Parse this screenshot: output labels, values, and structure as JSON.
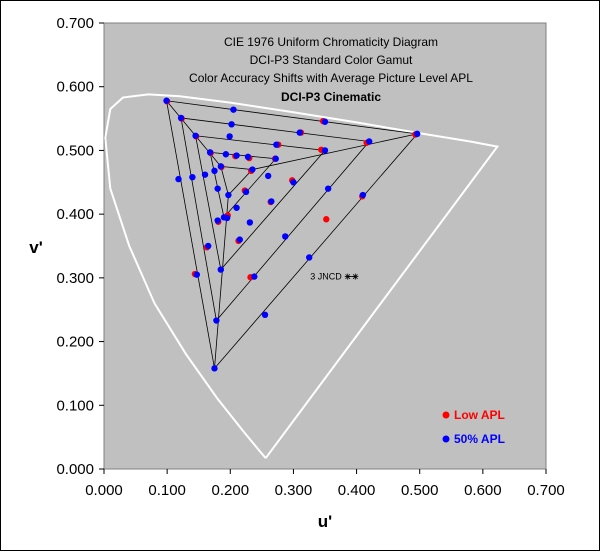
{
  "chart_data": {
    "type": "scatter",
    "title_lines": [
      "CIE 1976 Uniform Chromaticity Diagram",
      "DCI-P3 Standard Color Gamut",
      "Color Accuracy Shifts with Average Picture Level APL"
    ],
    "subtitle": "DCI-P3 Cinematic",
    "xlabel": "u'",
    "ylabel": "v'",
    "xlim": [
      0,
      0.7
    ],
    "ylim": [
      0,
      0.7
    ],
    "x_ticks": [
      "0.000",
      "0.100",
      "0.200",
      "0.300",
      "0.400",
      "0.500",
      "0.600",
      "0.700"
    ],
    "y_ticks": [
      "0.000",
      "0.100",
      "0.200",
      "0.300",
      "0.400",
      "0.500",
      "0.600",
      "0.700"
    ],
    "x_tick_values": [
      0,
      0.1,
      0.2,
      0.3,
      0.4,
      0.5,
      0.6,
      0.7
    ],
    "y_tick_values": [
      0,
      0.1,
      0.2,
      0.3,
      0.4,
      0.5,
      0.6,
      0.7
    ],
    "grid": false,
    "plot_background": "#c0c0c0",
    "spectral_locus_color": "#ffffff",
    "grid_line_color": "#000000",
    "locus": [
      [
        0.256,
        0.017
      ],
      [
        0.245,
        0.03
      ],
      [
        0.22,
        0.06
      ],
      [
        0.18,
        0.11
      ],
      [
        0.13,
        0.18
      ],
      [
        0.08,
        0.26
      ],
      [
        0.04,
        0.35
      ],
      [
        0.01,
        0.44
      ],
      [
        0.002,
        0.52
      ],
      [
        0.01,
        0.565
      ],
      [
        0.03,
        0.583
      ],
      [
        0.07,
        0.588
      ],
      [
        0.12,
        0.585
      ],
      [
        0.2,
        0.575
      ],
      [
        0.3,
        0.56
      ],
      [
        0.4,
        0.544
      ],
      [
        0.5,
        0.527
      ],
      [
        0.58,
        0.514
      ],
      [
        0.623,
        0.506
      ],
      [
        0.256,
        0.017
      ]
    ],
    "gamut_triangles": [
      [
        [
          0.099,
          0.578
        ],
        [
          0.496,
          0.526
        ],
        [
          0.175,
          0.158
        ]
      ],
      [
        [
          0.122,
          0.551
        ],
        [
          0.42,
          0.514
        ],
        [
          0.178,
          0.233
        ]
      ],
      [
        [
          0.145,
          0.523
        ],
        [
          0.35,
          0.5
        ],
        [
          0.185,
          0.313
        ]
      ],
      [
        [
          0.168,
          0.497
        ],
        [
          0.272,
          0.487
        ],
        [
          0.19,
          0.395
        ]
      ],
      [
        [
          0.185,
          0.475
        ],
        [
          0.235,
          0.47
        ],
        [
          0.197,
          0.43
        ]
      ]
    ],
    "spokes": [
      [
        [
          0.099,
          0.578
        ],
        [
          0.185,
          0.475
        ]
      ],
      [
        [
          0.496,
          0.526
        ],
        [
          0.235,
          0.47
        ]
      ],
      [
        [
          0.175,
          0.158
        ],
        [
          0.197,
          0.43
        ]
      ]
    ],
    "series": [
      {
        "name": "Low APL",
        "color": "#ff0000",
        "points": [
          [
            0.1,
            0.577
          ],
          [
            0.123,
            0.55
          ],
          [
            0.146,
            0.522
          ],
          [
            0.169,
            0.496
          ],
          [
            0.186,
            0.474
          ],
          [
            0.347,
            0.546
          ],
          [
            0.312,
            0.528
          ],
          [
            0.276,
            0.509
          ],
          [
            0.23,
            0.488
          ],
          [
            0.208,
            0.491
          ],
          [
            0.493,
            0.525
          ],
          [
            0.416,
            0.512
          ],
          [
            0.344,
            0.501
          ],
          [
            0.271,
            0.487
          ],
          [
            0.233,
            0.468
          ],
          [
            0.163,
            0.348
          ],
          [
            0.144,
            0.306
          ],
          [
            0.232,
            0.301
          ],
          [
            0.213,
            0.358
          ],
          [
            0.196,
            0.398
          ],
          [
            0.181,
            0.388
          ],
          [
            0.298,
            0.453
          ],
          [
            0.264,
            0.419
          ],
          [
            0.223,
            0.437
          ],
          [
            0.409,
            0.428
          ],
          [
            0.352,
            0.392
          ]
        ]
      },
      {
        "name": "50% APL",
        "color": "#0000ff",
        "points": [
          [
            0.099,
            0.578
          ],
          [
            0.122,
            0.551
          ],
          [
            0.145,
            0.523
          ],
          [
            0.168,
            0.497
          ],
          [
            0.185,
            0.475
          ],
          [
            0.205,
            0.564
          ],
          [
            0.202,
            0.541
          ],
          [
            0.199,
            0.522
          ],
          [
            0.193,
            0.494
          ],
          [
            0.21,
            0.492
          ],
          [
            0.496,
            0.526
          ],
          [
            0.42,
            0.514
          ],
          [
            0.35,
            0.5
          ],
          [
            0.272,
            0.487
          ],
          [
            0.235,
            0.47
          ],
          [
            0.175,
            0.158
          ],
          [
            0.178,
            0.233
          ],
          [
            0.185,
            0.313
          ],
          [
            0.19,
            0.395
          ],
          [
            0.197,
            0.43
          ],
          [
            0.35,
            0.545
          ],
          [
            0.31,
            0.528
          ],
          [
            0.273,
            0.509
          ],
          [
            0.228,
            0.49
          ],
          [
            0.41,
            0.43
          ],
          [
            0.355,
            0.44
          ],
          [
            0.3,
            0.45
          ],
          [
            0.26,
            0.46
          ],
          [
            0.255,
            0.242
          ],
          [
            0.325,
            0.332
          ],
          [
            0.287,
            0.365
          ],
          [
            0.238,
            0.302
          ],
          [
            0.215,
            0.36
          ],
          [
            0.21,
            0.41
          ],
          [
            0.165,
            0.35
          ],
          [
            0.147,
            0.305
          ],
          [
            0.118,
            0.455
          ],
          [
            0.14,
            0.458
          ],
          [
            0.16,
            0.462
          ],
          [
            0.175,
            0.468
          ],
          [
            0.18,
            0.39
          ],
          [
            0.195,
            0.394
          ],
          [
            0.225,
            0.435
          ],
          [
            0.265,
            0.42
          ],
          [
            0.231,
            0.387
          ],
          [
            0.18,
            0.44
          ]
        ]
      }
    ],
    "annotation": {
      "label": "3 JNCD",
      "x": 0.392,
      "y": 0.302,
      "half_width": 0.006
    },
    "legend": [
      {
        "label": "Low APL",
        "color": "#ff0000"
      },
      {
        "label": "50% APL",
        "color": "#0000ff"
      }
    ],
    "legend_position": "bottom-right"
  }
}
